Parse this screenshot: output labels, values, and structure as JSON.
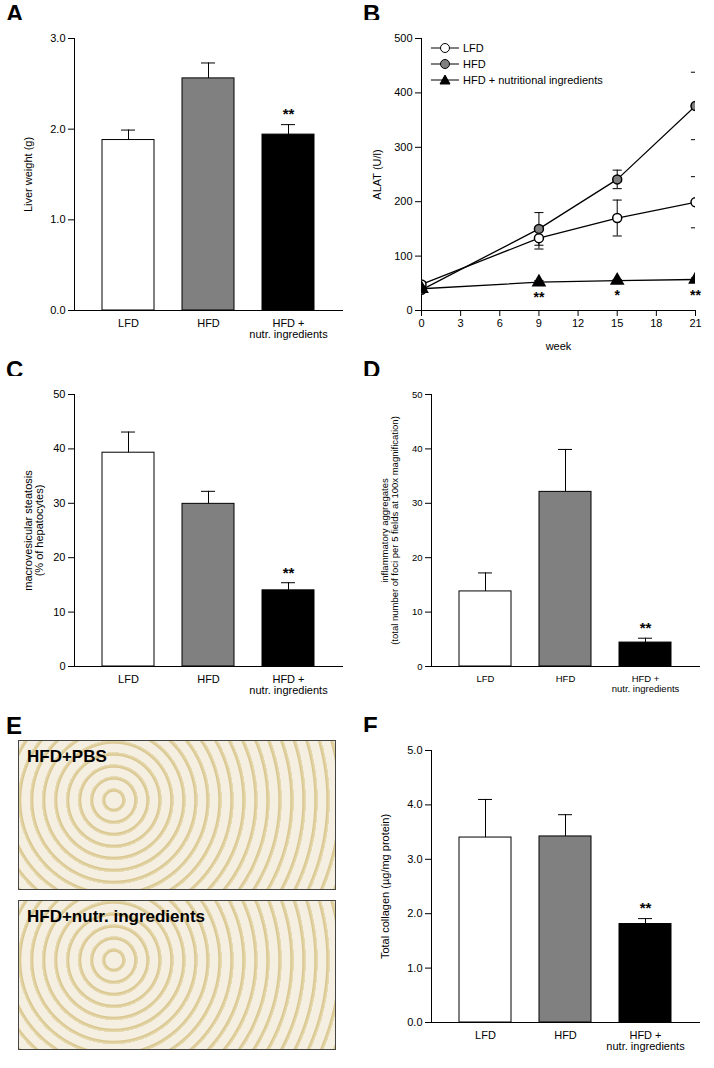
{
  "chart_data": [
    {
      "type": "bar",
      "title": "A",
      "categories": [
        "LFD",
        "HFD",
        "HFD +\nnutr. ingredients"
      ],
      "values": [
        1.88,
        2.56,
        1.94
      ],
      "errors": [
        0.11,
        0.17,
        0.11
      ],
      "colors": [
        "#ffffff",
        "#808080",
        "#000000"
      ],
      "ylabel": "Liver weight (g)",
      "ylim": [
        0,
        3
      ],
      "yticks": [
        0,
        1,
        2,
        3
      ],
      "annotations": [
        {
          "x": "HFD +\nnutr. ingredients",
          "text": "**"
        }
      ]
    },
    {
      "type": "line",
      "title": "B",
      "x": [
        0,
        9,
        15,
        21
      ],
      "xlim": [
        0,
        21
      ],
      "xticks": [
        0,
        3,
        6,
        9,
        12,
        15,
        18,
        21
      ],
      "xlabel": "week",
      "ylabel": "ALAT (U/l)",
      "ylim": [
        0,
        500
      ],
      "yticks": [
        0,
        100,
        200,
        300,
        400,
        500
      ],
      "legend": "top-left",
      "series": [
        {
          "name": "LFD",
          "color": "#ffffff",
          "marker": "circle",
          "values": [
            48,
            133,
            170,
            199
          ],
          "errors": [
            5,
            20,
            33,
            47
          ]
        },
        {
          "name": "HFD",
          "color": "#808080",
          "marker": "circle",
          "values": [
            38,
            150,
            241,
            376
          ],
          "errors": [
            3,
            30,
            17,
            62
          ]
        },
        {
          "name": "HFD + nutritional ingredients",
          "color": "#000000",
          "marker": "triangle",
          "values": [
            40,
            52,
            55,
            57
          ],
          "errors": [
            2,
            3,
            2,
            3
          ]
        }
      ],
      "annotations": [
        {
          "x": 9,
          "series": "HFD + nutritional ingredients",
          "text": "**"
        },
        {
          "x": 15,
          "series": "HFD + nutritional ingredients",
          "text": "*"
        },
        {
          "x": 21,
          "series": "HFD + nutritional ingredients",
          "text": "**"
        }
      ]
    },
    {
      "type": "bar",
      "title": "C",
      "categories": [
        "LFD",
        "HFD",
        "HFD +\nnutr. ingredients"
      ],
      "values": [
        39.3,
        29.9,
        14.0
      ],
      "errors": [
        3.8,
        2.3,
        1.4
      ],
      "colors": [
        "#ffffff",
        "#808080",
        "#000000"
      ],
      "ylabel": "macrovesicular steatosis\n(% of hepatocytes)",
      "ylim": [
        0,
        50
      ],
      "yticks": [
        0,
        10,
        20,
        30,
        40,
        50
      ],
      "annotations": [
        {
          "x": "HFD +\nnutr. ingredients",
          "text": "**"
        }
      ]
    },
    {
      "type": "bar",
      "title": "D",
      "categories": [
        "LFD",
        "HFD",
        "HFD +\nnutr. ingredients"
      ],
      "values": [
        13.8,
        32.1,
        4.4
      ],
      "errors": [
        3.4,
        7.8,
        0.8
      ],
      "colors": [
        "#ffffff",
        "#808080",
        "#000000"
      ],
      "ylabel": "inflammatory aggregates\n(total number of foci per 5 fields at 100x magnification)",
      "ylim": [
        0,
        50
      ],
      "yticks": [
        0,
        10,
        20,
        30,
        40,
        50
      ],
      "annotations": [
        {
          "x": "HFD +\nnutr. ingredients",
          "text": "**"
        }
      ]
    },
    {
      "type": "image",
      "title": "E",
      "panels": [
        "HFD+PBS",
        "HFD+nutr. ingredients"
      ]
    },
    {
      "type": "bar",
      "title": "F",
      "categories": [
        "LFD",
        "HFD",
        "HFD +\nnutr. ingredients"
      ],
      "values": [
        3.4,
        3.42,
        1.81
      ],
      "errors": [
        0.7,
        0.4,
        0.1
      ],
      "colors": [
        "#ffffff",
        "#808080",
        "#000000"
      ],
      "ylabel": "Total collagen (µg/mg protein)",
      "ylim": [
        0,
        5
      ],
      "yticks": [
        0,
        1,
        2,
        3,
        4,
        5
      ],
      "annotations": [
        {
          "x": "HFD +\nnutr. ingredients",
          "text": "**"
        }
      ]
    }
  ]
}
